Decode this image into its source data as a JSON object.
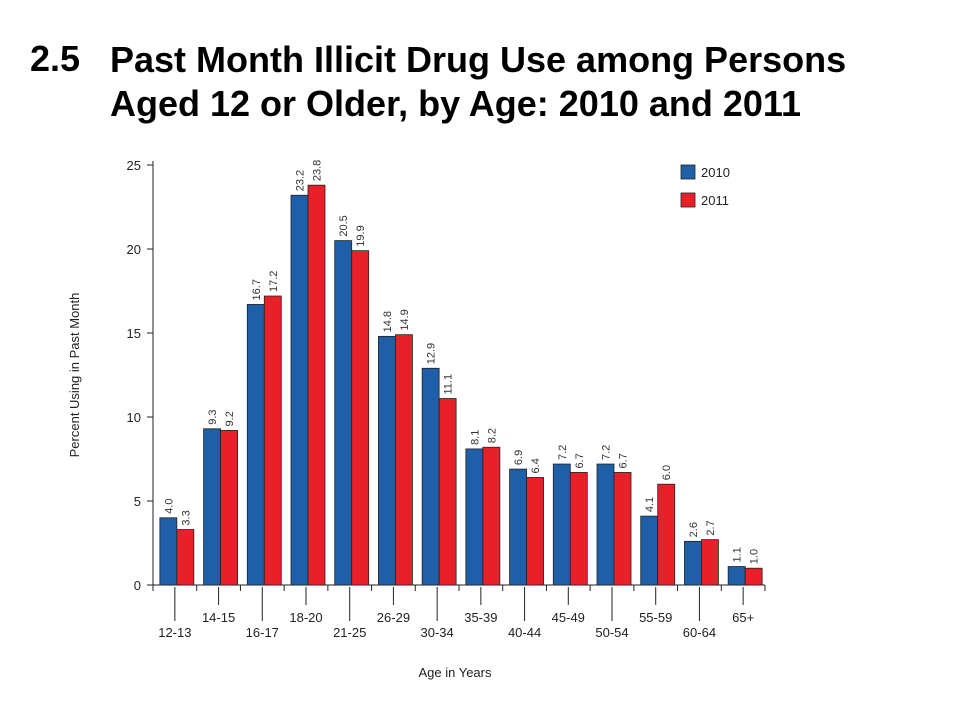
{
  "slide": {
    "number": "2.5",
    "title": "Past Month Illicit Drug Use among Persons Aged 12 or Older, by Age: 2010 and 2011"
  },
  "chart_data": {
    "type": "bar",
    "categories": [
      "12-13",
      "14-15",
      "16-17",
      "18-20",
      "21-25",
      "26-29",
      "30-34",
      "35-39",
      "40-44",
      "45-49",
      "50-54",
      "55-59",
      "60-64",
      "65+"
    ],
    "series": [
      {
        "name": "2010",
        "color": "#1f5fa8",
        "values": [
          4.0,
          9.3,
          16.7,
          23.2,
          20.5,
          14.8,
          12.9,
          8.1,
          6.9,
          7.2,
          7.2,
          4.1,
          2.6,
          1.1
        ]
      },
      {
        "name": "2011",
        "color": "#e8202a",
        "values": [
          3.3,
          9.2,
          17.2,
          23.8,
          19.9,
          14.9,
          11.1,
          8.2,
          6.4,
          6.7,
          6.7,
          6.0,
          2.7,
          1.0
        ]
      }
    ],
    "value_labels": {
      "2010": [
        "4.0",
        "9.3",
        "16.7",
        "23.2",
        "20.5",
        "14.8",
        "12.9",
        "8.1",
        "6.9",
        "7.2",
        "7.2",
        "4.1",
        "2.6",
        "1.1"
      ],
      "2011": [
        "3.3",
        "9.2",
        "17.2",
        "23.8",
        "19.9",
        "14.9",
        "11.1",
        "8.2",
        "6.4",
        "6.7",
        "6.7",
        "6.0",
        "2.7",
        "1.0"
      ]
    },
    "xlabel": "Age in Years",
    "ylabel": "Percent Using in Past Month",
    "ylim": [
      0,
      25
    ],
    "yticks": [
      0,
      5,
      10,
      15,
      20,
      25
    ],
    "legend_position": "top-right",
    "grid": false,
    "category_label_layout": "staggered"
  }
}
